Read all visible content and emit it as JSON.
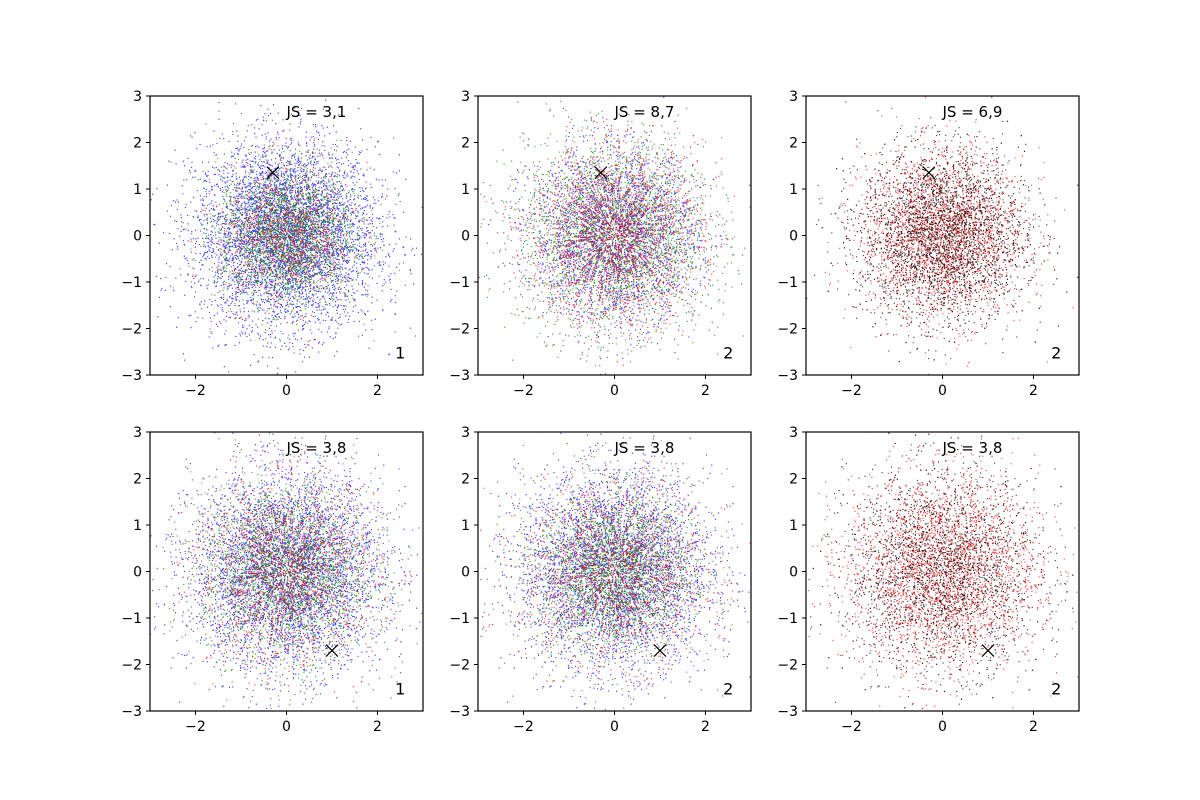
{
  "chart_data": [
    {
      "type": "scatter",
      "annotation": "JS = 3,1",
      "corner_label": "1",
      "xlim": [
        -3,
        3
      ],
      "ylim": [
        -3,
        3
      ],
      "xticks": [
        -2,
        0,
        2
      ],
      "yticks": [
        -3,
        -2,
        -1,
        0,
        1,
        2,
        3
      ],
      "grid": false,
      "marker": {
        "x": -0.3,
        "y": 1.35
      },
      "series": [
        {
          "color": "#0000ff",
          "points": 5000,
          "center": [
            0,
            0
          ],
          "std": 1.0
        },
        {
          "color": "#008000",
          "points": 2500,
          "center": [
            0,
            0
          ],
          "std": 0.75
        },
        {
          "color": "#ff0000",
          "points": 1200,
          "center": [
            0,
            0
          ],
          "std": 0.75
        }
      ]
    },
    {
      "type": "scatter",
      "annotation": "JS = 8,7",
      "corner_label": "2",
      "xlim": [
        -3,
        3
      ],
      "ylim": [
        -3,
        3
      ],
      "xticks": [
        -2,
        0,
        2
      ],
      "yticks": [
        -3,
        -2,
        -1,
        0,
        1,
        2,
        3
      ],
      "grid": false,
      "marker": {
        "x": -0.3,
        "y": 1.35
      },
      "series": [
        {
          "color": "#0000ff",
          "points": 3000,
          "center": [
            0,
            0
          ],
          "std": 0.9
        },
        {
          "color": "#008000",
          "points": 2500,
          "center": [
            0,
            0
          ],
          "std": 1.0
        },
        {
          "color": "#ff0000",
          "points": 2500,
          "center": [
            0,
            0
          ],
          "std": 0.95
        }
      ]
    },
    {
      "type": "scatter",
      "annotation": "JS = 6,9",
      "corner_label": "2",
      "xlim": [
        -3,
        3
      ],
      "ylim": [
        -3,
        3
      ],
      "xticks": [
        -2,
        0,
        2
      ],
      "yticks": [
        -3,
        -2,
        -1,
        0,
        1,
        2,
        3
      ],
      "grid": false,
      "marker": {
        "x": -0.3,
        "y": 1.35
      },
      "series": [
        {
          "color": "#ff0000",
          "points": 3500,
          "center": [
            0,
            0
          ],
          "std": 0.9
        },
        {
          "color": "#000000",
          "points": 3000,
          "center": [
            0,
            0
          ],
          "std": 0.9
        }
      ]
    },
    {
      "type": "scatter",
      "annotation": "JS = 3,8",
      "corner_label": "1",
      "xlim": [
        -3,
        3
      ],
      "ylim": [
        -3,
        3
      ],
      "xticks": [
        -2,
        0,
        2
      ],
      "yticks": [
        -3,
        -2,
        -1,
        0,
        1,
        2,
        3
      ],
      "grid": false,
      "marker": {
        "x": 1.0,
        "y": -1.7
      },
      "series": [
        {
          "color": "#0000ff",
          "points": 4500,
          "center": [
            0,
            0
          ],
          "std": 1.05
        },
        {
          "color": "#008000",
          "points": 2500,
          "center": [
            0,
            0
          ],
          "std": 0.9
        },
        {
          "color": "#ff0000",
          "points": 2000,
          "center": [
            0,
            0
          ],
          "std": 1.0
        }
      ]
    },
    {
      "type": "scatter",
      "annotation": "JS = 3,8",
      "corner_label": "2",
      "xlim": [
        -3,
        3
      ],
      "ylim": [
        -3,
        3
      ],
      "xticks": [
        -2,
        0,
        2
      ],
      "yticks": [
        -3,
        -2,
        -1,
        0,
        1,
        2,
        3
      ],
      "grid": false,
      "marker": {
        "x": 1.0,
        "y": -1.7
      },
      "series": [
        {
          "color": "#0000ff",
          "points": 4000,
          "center": [
            0,
            0
          ],
          "std": 1.05
        },
        {
          "color": "#008000",
          "points": 2500,
          "center": [
            0,
            0
          ],
          "std": 0.85
        },
        {
          "color": "#ff0000",
          "points": 2000,
          "center": [
            0,
            0
          ],
          "std": 1.0
        }
      ]
    },
    {
      "type": "scatter",
      "annotation": "JS = 3,8",
      "corner_label": "2",
      "xlim": [
        -3,
        3
      ],
      "ylim": [
        -3,
        3
      ],
      "xticks": [
        -2,
        0,
        2
      ],
      "yticks": [
        -3,
        -2,
        -1,
        0,
        1,
        2,
        3
      ],
      "grid": false,
      "marker": {
        "x": 1.0,
        "y": -1.7
      },
      "series": [
        {
          "color": "#ff0000",
          "points": 3500,
          "center": [
            0,
            0
          ],
          "std": 1.05
        },
        {
          "color": "#000000",
          "points": 2500,
          "center": [
            0,
            0
          ],
          "std": 1.05
        }
      ]
    }
  ]
}
